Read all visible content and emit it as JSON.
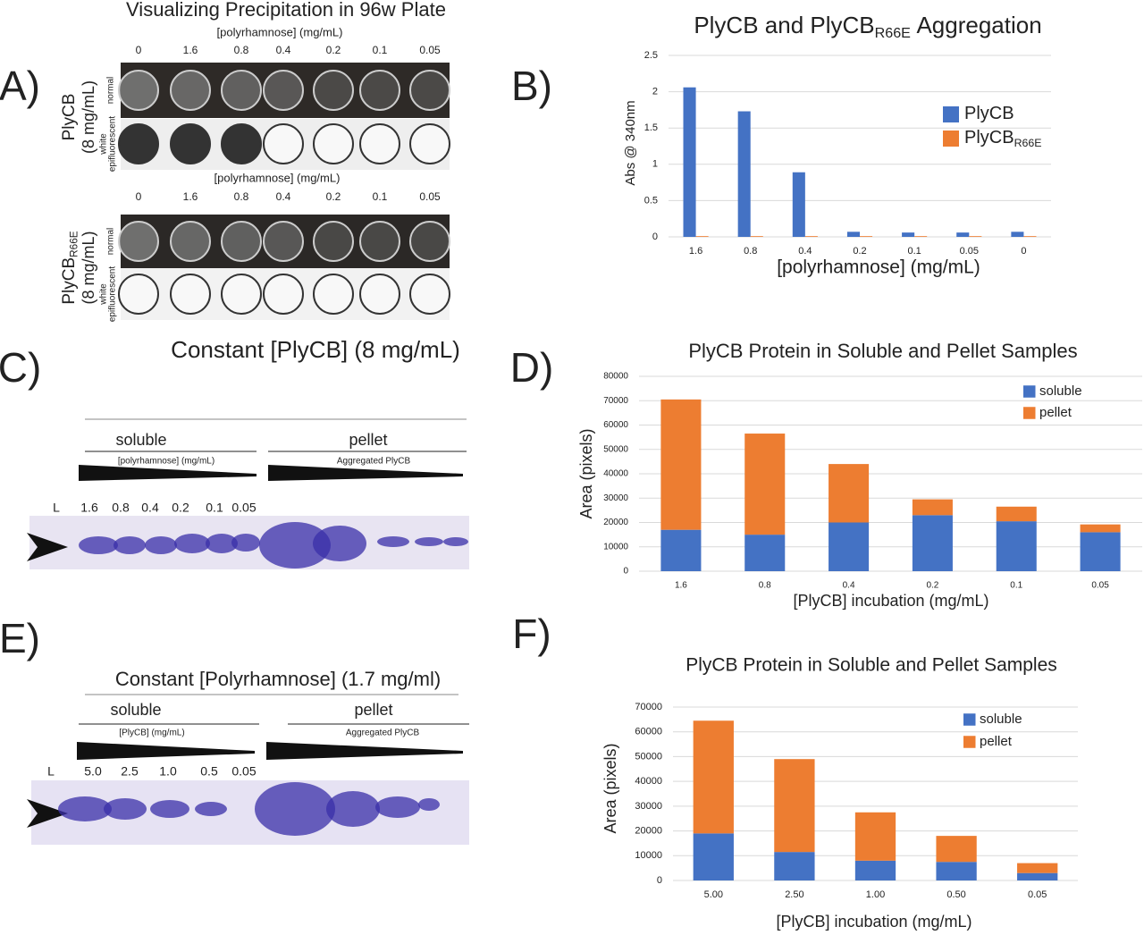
{
  "panel_labels": [
    "A)",
    "B)",
    "C)",
    "D)",
    "E)",
    "F)"
  ],
  "plate": {
    "title": "Visualizing Precipitation in 96w Plate",
    "axis_label": "[polyrhamnose] (mg/mL)",
    "concentrations": [
      "0",
      "1.6",
      "0.8",
      "0.4",
      "0.2",
      "0.1",
      "0.05"
    ],
    "row_labels": [
      "normal",
      "white",
      "epifluorescent"
    ],
    "samples": [
      {
        "name": "PlyCB",
        "concentration": "(8 mg/mL)"
      },
      {
        "name": "PlyCB",
        "subscript": "R66E",
        "concentration": "(8 mg/mL)"
      }
    ]
  },
  "gels": [
    {
      "title": "Constant [PlyCB] (8 mg/mL)",
      "soluble": "soluble",
      "pellet": "pellet",
      "soluble_gradient": "[polyrhamnose] (mg/mL)",
      "pellet_gradient": "Aggregated PlyCB",
      "lanes": [
        "L",
        "1.6",
        "0.8",
        "0.4",
        "0.2",
        "0.1",
        "0.05"
      ]
    },
    {
      "title": "Constant [Polyrhamnose] (1.7 mg/ml)",
      "soluble": "soluble",
      "pellet": "pellet",
      "soluble_gradient": "[PlyCB] (mg/mL)",
      "pellet_gradient": "Aggregated PlyCB",
      "lanes": [
        "L",
        "5.0",
        "2.5",
        "1.0",
        "0.5",
        "0.05"
      ]
    }
  ],
  "chart_data": [
    {
      "type": "bar",
      "title": {
        "text": "PlyCB and PlyCB",
        "subscript": "R66E",
        "suffix": "Aggregation"
      },
      "y_label": "Abs @ 340nm",
      "x_label": "[polyrhamnose] (mg/mL)",
      "categories": [
        "1.6",
        "0.8",
        "0.4",
        "0.2",
        "0.1",
        "0.05",
        "0"
      ],
      "series": [
        {
          "name": "PlyCB",
          "color": "#4472c4",
          "values": [
            2.06,
            1.73,
            0.89,
            0.07,
            0.06,
            0.06,
            0.07
          ]
        },
        {
          "name": "PlyCB",
          "subscript": "R66E",
          "color": "#ed7d31",
          "values": [
            0.01,
            0.01,
            0.01,
            0.01,
            0.01,
            0.01,
            0.01
          ]
        }
      ],
      "ylim": [
        0,
        2.5
      ],
      "yticks": [
        0,
        0.5,
        1,
        1.5,
        2,
        2.5
      ],
      "grid": true,
      "legend": "right"
    },
    {
      "type": "stacked_bar",
      "title": "PlyCB Protein in Soluble and Pellet Samples",
      "y_label": "Area (pixels)",
      "x_label": "[PlyCB] incubation (mg/mL)",
      "categories": [
        "1.6",
        "0.8",
        "0.4",
        "0.2",
        "0.1",
        "0.05"
      ],
      "series": [
        {
          "name": "soluble",
          "color": "#4472c4",
          "values": [
            17000,
            15000,
            20000,
            23000,
            20500,
            16000
          ]
        },
        {
          "name": "pellet",
          "color": "#ed7d31",
          "values": [
            53500,
            41500,
            24000,
            6500,
            6000,
            3200
          ]
        }
      ],
      "ylim": [
        0,
        80000
      ],
      "yticks": [
        0,
        10000,
        20000,
        30000,
        40000,
        50000,
        60000,
        70000,
        80000
      ],
      "grid": true,
      "legend": "top-right"
    },
    {
      "type": "stacked_bar",
      "title": "PlyCB Protein in Soluble and Pellet Samples",
      "y_label": "Area (pixels)",
      "x_label": "[PlyCB] incubation (mg/mL)",
      "categories": [
        "5.00",
        "2.50",
        "1.00",
        "0.50",
        "0.05"
      ],
      "series": [
        {
          "name": "soluble",
          "color": "#4472c4",
          "values": [
            19000,
            11500,
            8000,
            7500,
            3000
          ]
        },
        {
          "name": "pellet",
          "color": "#ed7d31",
          "values": [
            45500,
            37500,
            19500,
            10500,
            4000
          ]
        }
      ],
      "ylim": [
        0,
        70000
      ],
      "yticks": [
        0,
        10000,
        20000,
        30000,
        40000,
        50000,
        60000,
        70000
      ],
      "grid": true,
      "legend": "top-right"
    }
  ]
}
